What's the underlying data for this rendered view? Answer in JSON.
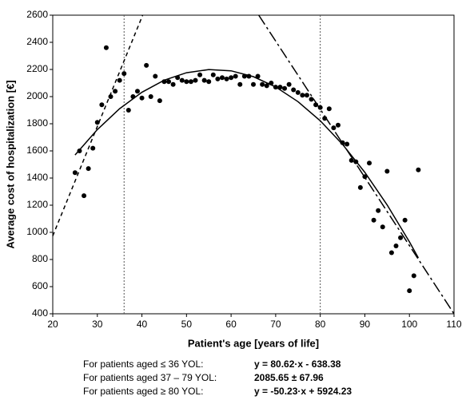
{
  "chart_data": {
    "type": "scatter",
    "y_label": "Average cost of hospitalization [€]",
    "x_label": "Patient's age [years of life]",
    "xlim": [
      20,
      110
    ],
    "ylim": [
      400,
      2600
    ],
    "xticks": [
      20,
      30,
      40,
      50,
      60,
      70,
      80,
      90,
      100,
      110
    ],
    "yticks": [
      400,
      600,
      800,
      1000,
      1200,
      1400,
      1600,
      1800,
      2000,
      2200,
      2400,
      2600
    ],
    "grid": false,
    "vlines": [
      36,
      80
    ],
    "series": [
      {
        "style": "points",
        "color": "#000000",
        "x": [
          25,
          26,
          27,
          28,
          29,
          30,
          31,
          32,
          33,
          34,
          35,
          36,
          37,
          38,
          39,
          40,
          41,
          42,
          43,
          44,
          45,
          46,
          47,
          48,
          49,
          50,
          51,
          52,
          53,
          54,
          55,
          56,
          57,
          58,
          59,
          60,
          61,
          62,
          63,
          64,
          65,
          66,
          67,
          68,
          69,
          70,
          71,
          72,
          73,
          74,
          75,
          76,
          77,
          78,
          79,
          80,
          81,
          82,
          83,
          84,
          85,
          86,
          87,
          88,
          89,
          90,
          91,
          92,
          93,
          94,
          95,
          96,
          97,
          98,
          99,
          100,
          101,
          102
        ],
        "values": [
          1440,
          1600,
          1270,
          1470,
          1620,
          1810,
          1940,
          2360,
          2000,
          2040,
          2120,
          2170,
          1900,
          2000,
          2040,
          1990,
          2230,
          2000,
          2150,
          1970,
          2110,
          2110,
          2090,
          2140,
          2120,
          2110,
          2110,
          2120,
          2160,
          2120,
          2110,
          2160,
          2130,
          2140,
          2130,
          2140,
          2150,
          2090,
          2150,
          2150,
          2090,
          2150,
          2090,
          2080,
          2100,
          2070,
          2070,
          2060,
          2090,
          2050,
          2030,
          2010,
          2010,
          1980,
          1940,
          1920,
          1840,
          1910,
          1770,
          1790,
          1660,
          1650,
          1530,
          1520,
          1330,
          1410,
          1510,
          1090,
          1160,
          1040,
          1450,
          850,
          900,
          960,
          1090,
          570,
          680,
          1460
        ]
      },
      {
        "style": "solid",
        "color": "#000000",
        "x": [
          25,
          30,
          35,
          40,
          45,
          50,
          55,
          60,
          65,
          70,
          75,
          80,
          85,
          90,
          95,
          100,
          102
        ],
        "values": [
          1570,
          1757,
          1911,
          2032,
          2121,
          2176,
          2199,
          2190,
          2147,
          2071,
          1963,
          1822,
          1648,
          1442,
          1202,
          930,
          812
        ]
      },
      {
        "style": "dashed",
        "color": "#000000",
        "x": [
          20,
          40.17
        ],
        "values": [
          974,
          2600
        ]
      },
      {
        "style": "dashdot",
        "color": "#000000",
        "x": [
          66.2,
          110
        ],
        "values": [
          2600,
          400
        ]
      }
    ],
    "annotations": [
      {
        "label": "For patients aged ≤ 36 YOL:",
        "text": "y = 80.62·x - 638.38"
      },
      {
        "label": "For patients aged 37 – 79 YOL:",
        "text": "2085.65 ± 67.96"
      },
      {
        "label": "For patients aged ≥ 80 YOL:",
        "text": "y = -50.23·x + 5924.23"
      }
    ]
  }
}
